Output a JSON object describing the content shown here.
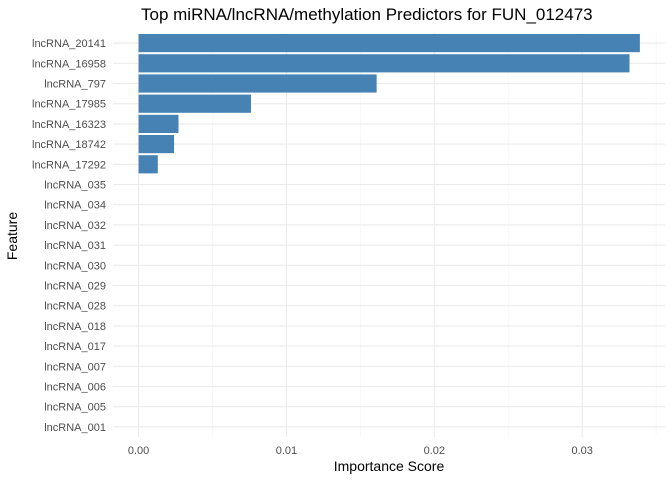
{
  "chart_data": {
    "type": "bar",
    "orientation": "horizontal",
    "title": "Top miRNA/lncRNA/methylation Predictors for FUN_012473",
    "xlabel": "Importance Score",
    "ylabel": "Feature",
    "categories": [
      "lncRNA_20141",
      "lncRNA_16958",
      "lncRNA_797",
      "lncRNA_17985",
      "lncRNA_16323",
      "lncRNA_18742",
      "lncRNA_17292",
      "lncRNA_035",
      "lncRNA_034",
      "lncRNA_032",
      "lncRNA_031",
      "lncRNA_030",
      "lncRNA_029",
      "lncRNA_028",
      "lncRNA_018",
      "lncRNA_017",
      "lncRNA_007",
      "lncRNA_006",
      "lncRNA_005",
      "lncRNA_001"
    ],
    "values": [
      0.0339,
      0.0332,
      0.0161,
      0.0076,
      0.0027,
      0.0024,
      0.0013,
      0,
      0,
      0,
      0,
      0,
      0,
      0,
      0,
      0,
      0,
      0,
      0,
      0
    ],
    "xlim": [
      -0.00173,
      0.0356
    ],
    "xticks": [
      0.0,
      0.01,
      0.02,
      0.03
    ],
    "xtick_labels": [
      "0.00",
      "0.01",
      "0.02",
      "0.03"
    ],
    "grid": true,
    "legend": "none",
    "bar_color": "#4682b4"
  }
}
